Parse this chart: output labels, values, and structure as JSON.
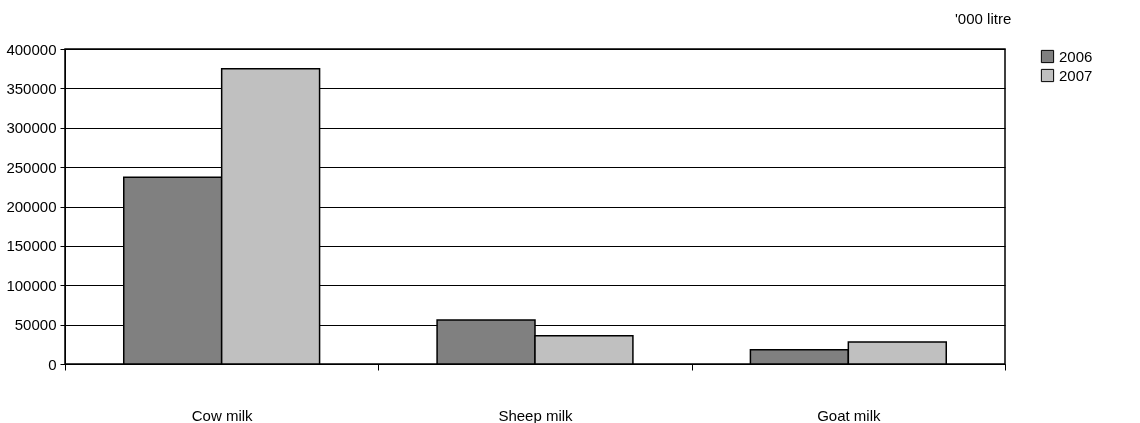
{
  "chart_data": {
    "type": "bar",
    "annotations": [
      "'000 litre"
    ],
    "categories": [
      "Cow milk",
      "Sheep milk",
      "Goat milk"
    ],
    "series": [
      {
        "name": "2006",
        "color": "#808080",
        "values": [
          237000,
          56000,
          18000
        ]
      },
      {
        "name": "2007",
        "color": "#c0c0c0",
        "values": [
          375000,
          36000,
          28000
        ]
      }
    ],
    "ylim": [
      0,
      400000
    ],
    "yticks": [
      0,
      50000,
      100000,
      150000,
      200000,
      250000,
      300000,
      350000,
      400000
    ],
    "grid": "y",
    "legend": "right"
  }
}
